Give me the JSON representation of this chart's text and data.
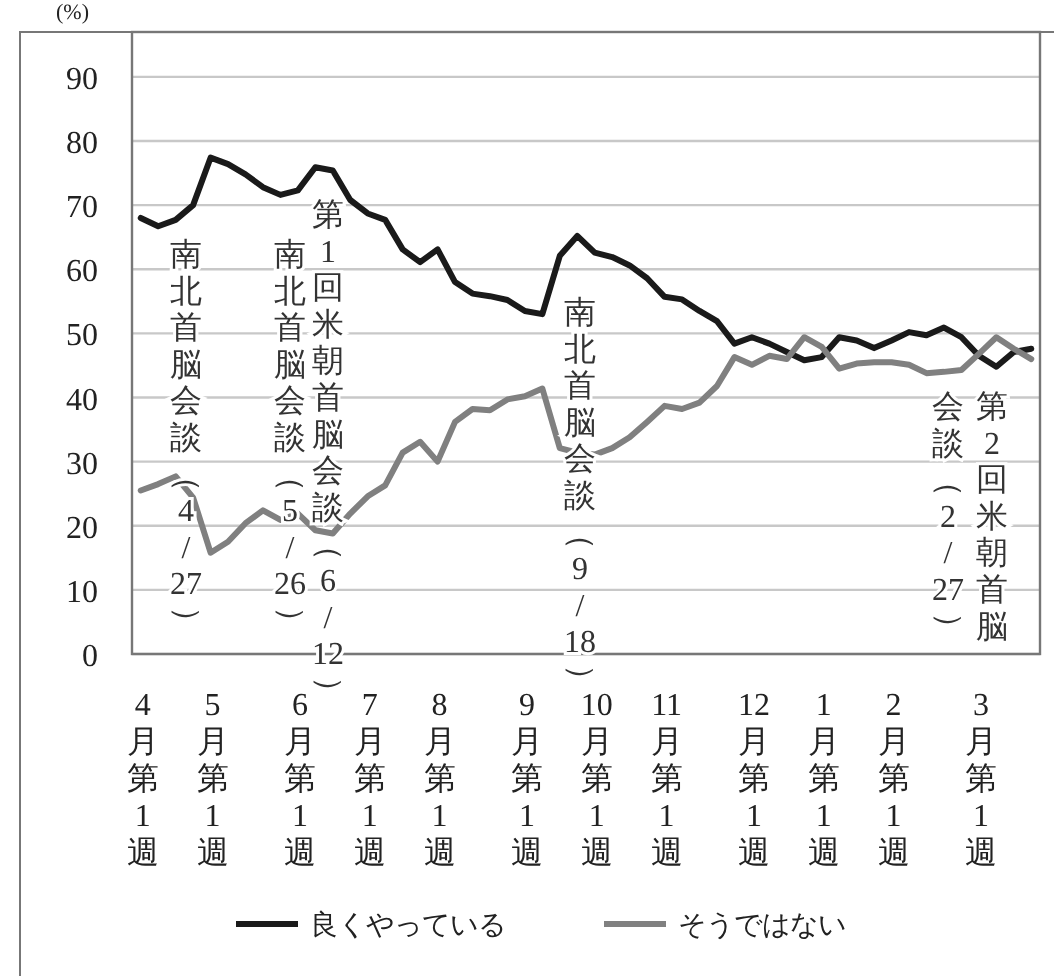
{
  "chart_data": {
    "type": "line",
    "ylabel": "(%)",
    "categories": [
      "4月第1週",
      null,
      null,
      null,
      "5月第1週",
      null,
      null,
      null,
      null,
      "6月第1週",
      null,
      null,
      null,
      "7月第1週",
      null,
      null,
      null,
      "8月第1週",
      null,
      null,
      null,
      null,
      "9月第1週",
      null,
      null,
      null,
      "10月第1週",
      null,
      null,
      null,
      "11月第1週",
      null,
      null,
      null,
      null,
      "12月第1週",
      null,
      null,
      null,
      "1月第1週",
      null,
      null,
      null,
      "2月第1週",
      null,
      null,
      null,
      null,
      "3月第1週",
      null,
      null,
      null
    ],
    "series": [
      {
        "name": "良くやっている",
        "color": "#1a1a1a",
        "values": [
          68.0,
          66.7,
          67.7,
          70.0,
          77.4,
          76.4,
          74.8,
          72.8,
          71.6,
          72.3,
          75.9,
          75.4,
          70.8,
          68.7,
          67.7,
          63.1,
          61.1,
          63.1,
          58.0,
          56.2,
          55.8,
          55.2,
          53.5,
          53.0,
          62.1,
          65.2,
          62.6,
          61.9,
          60.6,
          58.6,
          55.7,
          55.3,
          53.5,
          51.9,
          48.4,
          49.4,
          48.4,
          47.1,
          45.8,
          46.3,
          49.4,
          48.9,
          47.7,
          48.9,
          50.2,
          49.7,
          50.9,
          49.4,
          46.5,
          44.8,
          47.1,
          47.6
        ]
      },
      {
        "name": "そうではない",
        "color": "#808080",
        "values": [
          25.5,
          26.5,
          27.7,
          24.4,
          15.8,
          17.5,
          20.4,
          22.4,
          20.9,
          21.9,
          19.3,
          18.8,
          21.9,
          24.6,
          26.3,
          31.4,
          33.1,
          30.0,
          36.2,
          38.2,
          38.0,
          39.7,
          40.2,
          41.4,
          32.1,
          31.4,
          31.1,
          32.1,
          33.8,
          36.2,
          38.7,
          38.2,
          39.2,
          41.8,
          46.3,
          45.1,
          46.5,
          46.0,
          49.4,
          47.9,
          44.5,
          45.3,
          45.5,
          45.5,
          45.1,
          43.8,
          44.0,
          44.3,
          46.8,
          49.4,
          47.6,
          46.0
        ]
      }
    ],
    "ylim": [
      0,
      97
    ],
    "yticks": [
      0,
      10,
      20,
      30,
      40,
      50,
      60,
      70,
      80,
      90
    ],
    "grid": "y",
    "legend": "bottom",
    "annotations": [
      "南北首脳会談（4/27）",
      "南北首脳会談（5/26）",
      "第1回米朝首脳会談（6/12）",
      "南北首脳会談（9/18）",
      "第2回米朝首脳",
      "会談（2/27）"
    ]
  }
}
